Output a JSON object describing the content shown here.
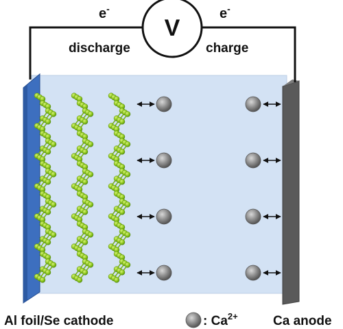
{
  "circuit": {
    "voltmeter_symbol": "V",
    "electron_left": "e",
    "electron_right": "e",
    "electron_charge_sign": "-",
    "discharge_label": "discharge",
    "charge_label": "charge"
  },
  "electrodes": {
    "cathode_label": "Al foil/Se cathode",
    "anode_label": "Ca anode"
  },
  "legend": {
    "ion_prefix": ": Ca",
    "ion_charge": "2+"
  },
  "colors": {
    "electrolyte": "#d3e2f4",
    "electrolyte_edge": "#bccfe6",
    "al_foil": "#3d6fbf",
    "al_foil_edge": "#244c8f",
    "ca_anode": "#5a5a5a",
    "ca_anode_top": "#7d7d7d",
    "se_atom": "#94cc1e",
    "se_bond": "#7bb321",
    "ca_ion": "#8a8a8a",
    "wire": "#111111"
  },
  "icons": {
    "ion_arrow": "double-headed-arrow-icon",
    "ion": "calcium-ion-sphere-icon",
    "selenium_chain": "selenium-helical-chain-icon"
  }
}
